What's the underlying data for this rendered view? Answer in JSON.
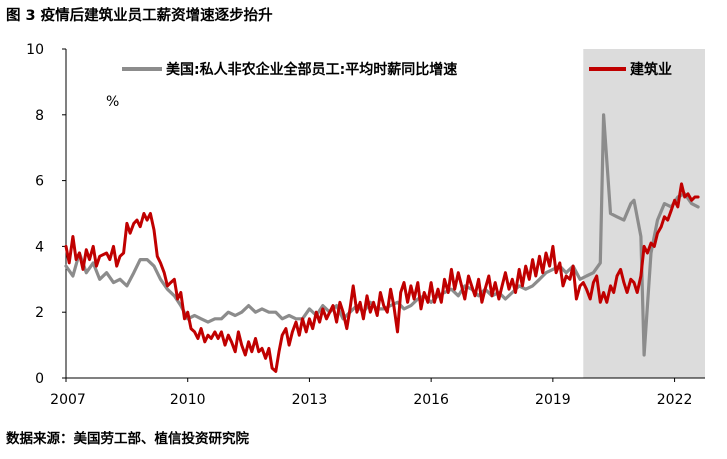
{
  "title": "图 3 疫情后建筑业员工薪资增速逐步抬升",
  "source": "数据来源：美国劳工部、植信投资研究院",
  "chart_data": {
    "type": "line",
    "unit": "%",
    "ylim": [
      0,
      10
    ],
    "yticks": [
      0,
      2,
      4,
      6,
      8,
      10
    ],
    "xlim": [
      2007.0,
      2022.75
    ],
    "xticks": [
      2007,
      2010,
      2013,
      2016,
      2019,
      2022
    ],
    "shaded_region": {
      "x": [
        2019.75,
        2022.75
      ],
      "color": "#dcdcdc"
    },
    "grid": false,
    "legend": "top",
    "series": [
      {
        "name": "美国:私人非农企业全部员工:平均时薪同比增速",
        "color": "#8c8c8c",
        "points": [
          [
            2007.0,
            3.4
          ],
          [
            2007.17,
            3.1
          ],
          [
            2007.33,
            3.8
          ],
          [
            2007.5,
            3.2
          ],
          [
            2007.67,
            3.5
          ],
          [
            2007.83,
            3.0
          ],
          [
            2008.0,
            3.2
          ],
          [
            2008.17,
            2.9
          ],
          [
            2008.33,
            3.0
          ],
          [
            2008.5,
            2.8
          ],
          [
            2008.67,
            3.2
          ],
          [
            2008.83,
            3.6
          ],
          [
            2009.0,
            3.6
          ],
          [
            2009.17,
            3.4
          ],
          [
            2009.33,
            3.0
          ],
          [
            2009.5,
            2.7
          ],
          [
            2009.67,
            2.5
          ],
          [
            2009.83,
            2.2
          ],
          [
            2010.0,
            1.8
          ],
          [
            2010.17,
            1.9
          ],
          [
            2010.33,
            1.8
          ],
          [
            2010.5,
            1.7
          ],
          [
            2010.67,
            1.8
          ],
          [
            2010.83,
            1.8
          ],
          [
            2011.0,
            2.0
          ],
          [
            2011.17,
            1.9
          ],
          [
            2011.33,
            2.0
          ],
          [
            2011.5,
            2.2
          ],
          [
            2011.67,
            2.0
          ],
          [
            2011.83,
            2.1
          ],
          [
            2012.0,
            2.0
          ],
          [
            2012.17,
            2.0
          ],
          [
            2012.33,
            1.8
          ],
          [
            2012.5,
            1.9
          ],
          [
            2012.67,
            1.8
          ],
          [
            2012.83,
            1.8
          ],
          [
            2013.0,
            2.1
          ],
          [
            2013.17,
            1.9
          ],
          [
            2013.33,
            2.2
          ],
          [
            2013.5,
            2.0
          ],
          [
            2013.67,
            2.2
          ],
          [
            2013.83,
            1.8
          ],
          [
            2014.0,
            2.0
          ],
          [
            2014.17,
            2.2
          ],
          [
            2014.33,
            2.0
          ],
          [
            2014.5,
            2.3
          ],
          [
            2014.67,
            2.1
          ],
          [
            2014.83,
            2.1
          ],
          [
            2015.0,
            2.2
          ],
          [
            2015.17,
            2.3
          ],
          [
            2015.33,
            2.1
          ],
          [
            2015.5,
            2.2
          ],
          [
            2015.67,
            2.4
          ],
          [
            2015.83,
            2.5
          ],
          [
            2016.0,
            2.3
          ],
          [
            2016.17,
            2.5
          ],
          [
            2016.33,
            2.6
          ],
          [
            2016.5,
            2.7
          ],
          [
            2016.67,
            2.5
          ],
          [
            2016.83,
            2.8
          ],
          [
            2017.0,
            2.7
          ],
          [
            2017.17,
            2.5
          ],
          [
            2017.33,
            2.7
          ],
          [
            2017.5,
            2.5
          ],
          [
            2017.67,
            2.6
          ],
          [
            2017.83,
            2.4
          ],
          [
            2018.0,
            2.6
          ],
          [
            2018.17,
            2.8
          ],
          [
            2018.33,
            2.7
          ],
          [
            2018.5,
            2.8
          ],
          [
            2018.67,
            3.0
          ],
          [
            2018.83,
            3.2
          ],
          [
            2019.0,
            3.3
          ],
          [
            2019.17,
            3.4
          ],
          [
            2019.33,
            3.2
          ],
          [
            2019.5,
            3.4
          ],
          [
            2019.67,
            3.0
          ],
          [
            2019.83,
            3.1
          ],
          [
            2020.0,
            3.2
          ],
          [
            2020.17,
            3.5
          ],
          [
            2020.25,
            8.0
          ],
          [
            2020.42,
            5.0
          ],
          [
            2020.58,
            4.9
          ],
          [
            2020.75,
            4.8
          ],
          [
            2020.92,
            5.3
          ],
          [
            2021.0,
            5.4
          ],
          [
            2021.17,
            4.3
          ],
          [
            2021.25,
            0.7
          ],
          [
            2021.42,
            3.8
          ],
          [
            2021.58,
            4.8
          ],
          [
            2021.75,
            5.3
          ],
          [
            2021.92,
            5.2
          ],
          [
            2022.08,
            5.5
          ],
          [
            2022.25,
            5.6
          ],
          [
            2022.42,
            5.3
          ],
          [
            2022.58,
            5.2
          ]
        ]
      },
      {
        "name": "建筑业",
        "color": "#c00000",
        "points": [
          [
            2007.0,
            4.0
          ],
          [
            2007.08,
            3.5
          ],
          [
            2007.17,
            4.3
          ],
          [
            2007.25,
            3.6
          ],
          [
            2007.33,
            3.8
          ],
          [
            2007.42,
            3.3
          ],
          [
            2007.5,
            3.9
          ],
          [
            2007.58,
            3.6
          ],
          [
            2007.67,
            4.0
          ],
          [
            2007.75,
            3.4
          ],
          [
            2007.83,
            3.7
          ],
          [
            2008.0,
            3.8
          ],
          [
            2008.08,
            3.6
          ],
          [
            2008.17,
            4.0
          ],
          [
            2008.25,
            3.4
          ],
          [
            2008.33,
            3.7
          ],
          [
            2008.42,
            3.8
          ],
          [
            2008.5,
            4.7
          ],
          [
            2008.58,
            4.4
          ],
          [
            2008.67,
            4.7
          ],
          [
            2008.75,
            4.8
          ],
          [
            2008.83,
            4.6
          ],
          [
            2008.92,
            5.0
          ],
          [
            2009.0,
            4.8
          ],
          [
            2009.08,
            5.0
          ],
          [
            2009.17,
            4.5
          ],
          [
            2009.25,
            3.7
          ],
          [
            2009.33,
            3.5
          ],
          [
            2009.42,
            3.2
          ],
          [
            2009.5,
            2.8
          ],
          [
            2009.58,
            2.9
          ],
          [
            2009.67,
            3.0
          ],
          [
            2009.75,
            2.4
          ],
          [
            2009.83,
            2.6
          ],
          [
            2009.92,
            1.8
          ],
          [
            2010.0,
            2.0
          ],
          [
            2010.08,
            1.5
          ],
          [
            2010.17,
            1.4
          ],
          [
            2010.25,
            1.2
          ],
          [
            2010.33,
            1.5
          ],
          [
            2010.42,
            1.1
          ],
          [
            2010.5,
            1.3
          ],
          [
            2010.58,
            1.2
          ],
          [
            2010.67,
            1.4
          ],
          [
            2010.75,
            1.2
          ],
          [
            2010.83,
            1.4
          ],
          [
            2010.92,
            1.0
          ],
          [
            2011.0,
            1.3
          ],
          [
            2011.08,
            1.1
          ],
          [
            2011.17,
            0.8
          ],
          [
            2011.25,
            1.4
          ],
          [
            2011.33,
            1.0
          ],
          [
            2011.42,
            0.7
          ],
          [
            2011.5,
            1.1
          ],
          [
            2011.58,
            0.8
          ],
          [
            2011.67,
            1.2
          ],
          [
            2011.75,
            0.8
          ],
          [
            2011.83,
            0.9
          ],
          [
            2011.92,
            0.6
          ],
          [
            2012.0,
            0.9
          ],
          [
            2012.08,
            0.3
          ],
          [
            2012.17,
            0.2
          ],
          [
            2012.25,
            0.8
          ],
          [
            2012.33,
            1.3
          ],
          [
            2012.42,
            1.5
          ],
          [
            2012.5,
            1.0
          ],
          [
            2012.58,
            1.4
          ],
          [
            2012.67,
            1.7
          ],
          [
            2012.75,
            1.3
          ],
          [
            2012.83,
            1.8
          ],
          [
            2012.92,
            1.4
          ],
          [
            2013.0,
            1.8
          ],
          [
            2013.08,
            1.5
          ],
          [
            2013.17,
            2.0
          ],
          [
            2013.25,
            1.7
          ],
          [
            2013.33,
            2.1
          ],
          [
            2013.42,
            1.8
          ],
          [
            2013.5,
            2.0
          ],
          [
            2013.58,
            2.2
          ],
          [
            2013.67,
            1.7
          ],
          [
            2013.75,
            2.3
          ],
          [
            2013.83,
            2.0
          ],
          [
            2013.92,
            1.5
          ],
          [
            2014.0,
            2.1
          ],
          [
            2014.08,
            2.8
          ],
          [
            2014.17,
            2.0
          ],
          [
            2014.25,
            2.3
          ],
          [
            2014.33,
            1.8
          ],
          [
            2014.42,
            2.5
          ],
          [
            2014.5,
            2.0
          ],
          [
            2014.58,
            2.3
          ],
          [
            2014.67,
            1.9
          ],
          [
            2014.75,
            2.6
          ],
          [
            2014.83,
            2.2
          ],
          [
            2014.92,
            2.0
          ],
          [
            2015.0,
            2.7
          ],
          [
            2015.08,
            2.2
          ],
          [
            2015.17,
            1.4
          ],
          [
            2015.25,
            2.6
          ],
          [
            2015.33,
            2.9
          ],
          [
            2015.42,
            2.3
          ],
          [
            2015.5,
            2.8
          ],
          [
            2015.58,
            2.4
          ],
          [
            2015.67,
            2.9
          ],
          [
            2015.75,
            2.1
          ],
          [
            2015.83,
            2.6
          ],
          [
            2015.92,
            2.3
          ],
          [
            2016.0,
            2.9
          ],
          [
            2016.08,
            2.3
          ],
          [
            2016.17,
            2.7
          ],
          [
            2016.25,
            2.3
          ],
          [
            2016.33,
            3.0
          ],
          [
            2016.42,
            2.6
          ],
          [
            2016.5,
            3.3
          ],
          [
            2016.58,
            2.7
          ],
          [
            2016.67,
            3.2
          ],
          [
            2016.75,
            2.8
          ],
          [
            2016.83,
            2.4
          ],
          [
            2016.92,
            3.1
          ],
          [
            2017.0,
            2.8
          ],
          [
            2017.08,
            2.5
          ],
          [
            2017.17,
            3.0
          ],
          [
            2017.25,
            2.3
          ],
          [
            2017.33,
            2.7
          ],
          [
            2017.42,
            3.1
          ],
          [
            2017.5,
            2.5
          ],
          [
            2017.58,
            2.9
          ],
          [
            2017.67,
            2.4
          ],
          [
            2017.75,
            2.8
          ],
          [
            2017.83,
            3.2
          ],
          [
            2017.92,
            2.7
          ],
          [
            2018.0,
            3.0
          ],
          [
            2018.08,
            2.6
          ],
          [
            2018.17,
            3.3
          ],
          [
            2018.25,
            2.8
          ],
          [
            2018.33,
            3.4
          ],
          [
            2018.42,
            3.0
          ],
          [
            2018.5,
            3.6
          ],
          [
            2018.58,
            3.1
          ],
          [
            2018.67,
            3.7
          ],
          [
            2018.75,
            3.2
          ],
          [
            2018.83,
            3.8
          ],
          [
            2018.92,
            3.4
          ],
          [
            2019.0,
            4.0
          ],
          [
            2019.08,
            3.2
          ],
          [
            2019.17,
            3.5
          ],
          [
            2019.25,
            2.8
          ],
          [
            2019.33,
            3.1
          ],
          [
            2019.42,
            3.0
          ],
          [
            2019.5,
            3.4
          ],
          [
            2019.58,
            2.4
          ],
          [
            2019.67,
            2.8
          ],
          [
            2019.75,
            2.9
          ],
          [
            2019.83,
            2.7
          ],
          [
            2019.92,
            2.4
          ],
          [
            2020.0,
            2.9
          ],
          [
            2020.08,
            3.1
          ],
          [
            2020.17,
            2.3
          ],
          [
            2020.25,
            2.6
          ],
          [
            2020.33,
            2.3
          ],
          [
            2020.42,
            2.8
          ],
          [
            2020.5,
            2.6
          ],
          [
            2020.58,
            3.1
          ],
          [
            2020.67,
            3.3
          ],
          [
            2020.75,
            2.9
          ],
          [
            2020.83,
            2.6
          ],
          [
            2020.92,
            3.0
          ],
          [
            2021.0,
            2.9
          ],
          [
            2021.08,
            2.6
          ],
          [
            2021.17,
            3.1
          ],
          [
            2021.25,
            4.0
          ],
          [
            2021.33,
            3.8
          ],
          [
            2021.42,
            4.1
          ],
          [
            2021.5,
            4.0
          ],
          [
            2021.58,
            4.4
          ],
          [
            2021.67,
            4.6
          ],
          [
            2021.75,
            4.9
          ],
          [
            2021.83,
            4.8
          ],
          [
            2021.92,
            5.1
          ],
          [
            2022.0,
            5.4
          ],
          [
            2022.08,
            5.2
          ],
          [
            2022.17,
            5.9
          ],
          [
            2022.25,
            5.5
          ],
          [
            2022.33,
            5.6
          ],
          [
            2022.42,
            5.4
          ],
          [
            2022.5,
            5.5
          ],
          [
            2022.58,
            5.5
          ]
        ]
      }
    ]
  }
}
